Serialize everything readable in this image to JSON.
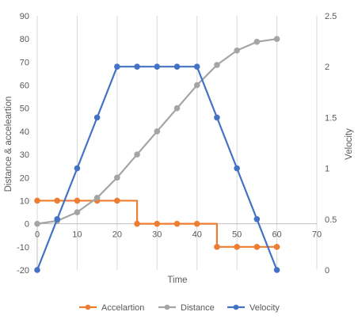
{
  "chart_data": {
    "type": "line",
    "title": "",
    "xlabel": "Time",
    "ylabel_left": "Distance & accelеartion",
    "ylabel_right": "Velocity",
    "xlim": [
      0,
      70
    ],
    "ylim_left": [
      -20,
      90
    ],
    "ylim_right": [
      0,
      2.5
    ],
    "x_ticks": [
      0,
      10,
      20,
      30,
      40,
      50,
      60,
      70
    ],
    "y_left_ticks": [
      -20,
      -10,
      0,
      10,
      20,
      30,
      40,
      50,
      60,
      70,
      80,
      90
    ],
    "y_right_ticks": [
      0,
      0.5,
      1,
      1.5,
      2,
      2.5
    ],
    "grid": "vertical",
    "legend_position": "bottom",
    "series": [
      {
        "name": "Accelartion",
        "color": "#ED7D31",
        "axis": "left",
        "step": true,
        "x": [
          0,
          5,
          10,
          15,
          20,
          25,
          30,
          35,
          40,
          45,
          50,
          55,
          60
        ],
        "y": [
          10,
          10,
          10,
          10,
          10,
          0,
          0,
          0,
          0,
          -10,
          -10,
          -10,
          -10
        ]
      },
      {
        "name": "Distance",
        "color": "#A5A5A5",
        "axis": "left",
        "step": false,
        "x": [
          0,
          5,
          10,
          15,
          20,
          25,
          30,
          35,
          40,
          45,
          50,
          55,
          60
        ],
        "y": [
          0,
          1.25,
          5,
          11.25,
          20,
          30,
          40,
          50,
          60,
          68.75,
          75,
          78.75,
          80
        ]
      },
      {
        "name": "Velocity",
        "color": "#4472C4",
        "axis": "right",
        "step": false,
        "x": [
          0,
          5,
          10,
          15,
          20,
          25,
          30,
          35,
          40,
          45,
          50,
          55,
          60
        ],
        "y": [
          0,
          0.5,
          1,
          1.5,
          2,
          2,
          2,
          2,
          2,
          1.5,
          1,
          0.5,
          0
        ]
      }
    ]
  }
}
